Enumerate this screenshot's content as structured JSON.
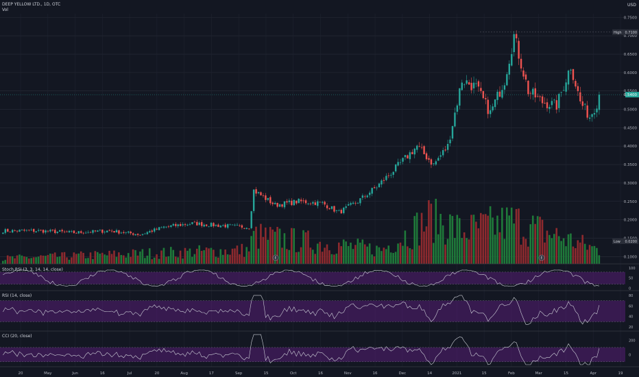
{
  "header": {
    "title": "DEEP YELLOW LTD., 1D, OTC",
    "vol_label": "Vol"
  },
  "currency": "USD",
  "price_axis": {
    "ticks": [
      "0.7500",
      "0.7000",
      "0.6500",
      "0.6000",
      "0.5500",
      "0.5000",
      "0.4500",
      "0.4000",
      "0.3500",
      "0.3000",
      "0.2500",
      "0.2000",
      "0.1500",
      "0.1000"
    ],
    "high_label": "High",
    "high_value": "0.7100",
    "low_label": "Low",
    "low_value": "0.0200",
    "last_value": "0.5400"
  },
  "stoch": {
    "label": "Stoch RSI (3, 3, 14, 14, close)",
    "ticks": [
      "100",
      "50",
      "0"
    ]
  },
  "rsi": {
    "label": "RSI (14, close)",
    "ticks": [
      "80",
      "60",
      "40",
      "20"
    ]
  },
  "cci": {
    "label": "CCI (20, close)",
    "ticks": [
      "200",
      "0"
    ]
  },
  "time_axis": [
    "20",
    "May",
    "Jun",
    "16",
    "Jul",
    "20",
    "Aug",
    "17",
    "Sep",
    "15",
    "Oct",
    "16",
    "Nov",
    "16",
    "Dec",
    "14",
    "2021",
    "15",
    "Feb",
    "Mar",
    "15",
    "Apr",
    "19"
  ],
  "event_markers": [
    "E",
    "E"
  ],
  "colors": {
    "up": "#26a69a",
    "down": "#ef5350",
    "vol_up": "#1f7a3a",
    "vol_down": "#8e2a2e",
    "osc_bg": "#7b1fa2",
    "line": "#cfd2da",
    "bg": "#131722"
  },
  "chart_data": [
    {
      "type": "candlestick",
      "title": "DEEP YELLOW LTD., 1D, OTC",
      "ylabel": "USD",
      "ylim": [
        0.08,
        0.76
      ],
      "x_range_labels": [
        "20",
        "May",
        "Jun",
        "16",
        "Jul",
        "20",
        "Aug",
        "17",
        "Sep",
        "15",
        "Oct",
        "16",
        "Nov",
        "16",
        "Dec",
        "14",
        "2021",
        "15",
        "Feb",
        "Mar",
        "15",
        "Apr",
        "19"
      ],
      "trend_anchors": [
        {
          "bar": 0,
          "close": 0.17
        },
        {
          "bar": 15,
          "close": 0.17
        },
        {
          "bar": 30,
          "close": 0.165
        },
        {
          "bar": 45,
          "close": 0.17
        },
        {
          "bar": 58,
          "close": 0.16
        },
        {
          "bar": 68,
          "close": 0.18
        },
        {
          "bar": 80,
          "close": 0.19
        },
        {
          "bar": 90,
          "close": 0.185
        },
        {
          "bar": 104,
          "close": 0.18
        },
        {
          "bar": 106,
          "close": 0.28
        },
        {
          "bar": 115,
          "close": 0.24
        },
        {
          "bar": 125,
          "close": 0.25
        },
        {
          "bar": 135,
          "close": 0.245
        },
        {
          "bar": 142,
          "close": 0.22
        },
        {
          "bar": 150,
          "close": 0.25
        },
        {
          "bar": 158,
          "close": 0.29
        },
        {
          "bar": 166,
          "close": 0.34
        },
        {
          "bar": 175,
          "close": 0.4
        },
        {
          "bar": 182,
          "close": 0.35
        },
        {
          "bar": 188,
          "close": 0.4
        },
        {
          "bar": 194,
          "close": 0.58
        },
        {
          "bar": 200,
          "close": 0.56
        },
        {
          "bar": 206,
          "close": 0.49
        },
        {
          "bar": 212,
          "close": 0.58
        },
        {
          "bar": 216,
          "close": 0.7
        },
        {
          "bar": 222,
          "close": 0.55
        },
        {
          "bar": 228,
          "close": 0.52
        },
        {
          "bar": 234,
          "close": 0.51
        },
        {
          "bar": 240,
          "close": 0.62
        },
        {
          "bar": 244,
          "close": 0.52
        },
        {
          "bar": 248,
          "close": 0.48
        },
        {
          "bar": 252,
          "close": 0.53
        }
      ],
      "high": 0.71,
      "low": 0.02,
      "last": 0.54
    },
    {
      "type": "bar",
      "title": "Vol",
      "notes_volume_shape": [
        {
          "bar": 0,
          "v": 0.12
        },
        {
          "bar": 104,
          "v": 0.3
        },
        {
          "bar": 106,
          "v": 0.6
        },
        {
          "bar": 160,
          "v": 0.3
        },
        {
          "bar": 182,
          "v": 1.0
        },
        {
          "bar": 194,
          "v": 0.7
        },
        {
          "bar": 216,
          "v": 0.9
        },
        {
          "bar": 252,
          "v": 0.3
        }
      ]
    },
    {
      "type": "line",
      "title": "Stoch RSI (3, 3, 14, 14, close)",
      "ylim": [
        0,
        100
      ]
    },
    {
      "type": "line",
      "title": "RSI (14, close)",
      "ylim": [
        15,
        85
      ]
    },
    {
      "type": "line",
      "title": "CCI (20, close)",
      "ylim": [
        -150,
        300
      ]
    }
  ]
}
